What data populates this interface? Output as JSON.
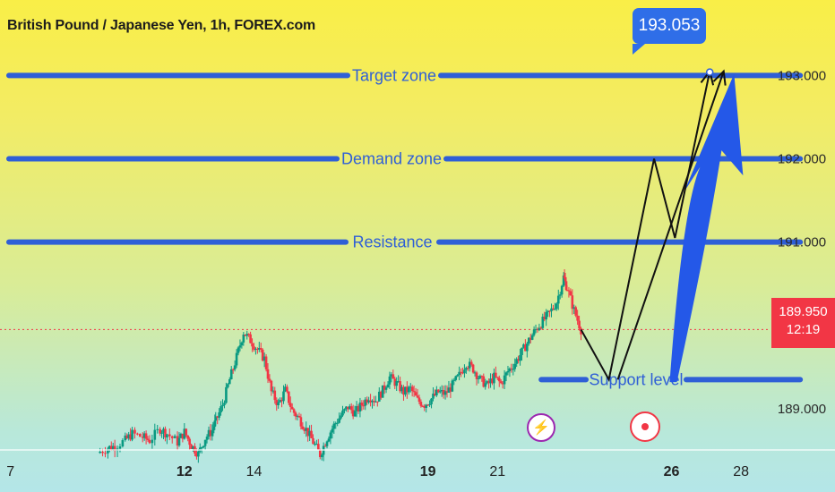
{
  "header": {
    "title": "British Pound / Japanese Yen, 1h, FOREX.com"
  },
  "colors": {
    "zone_line": "#2f5fd6",
    "up_candle": "#089981",
    "down_candle": "#f23645",
    "arrow_blue": "#2458e8",
    "path_black": "#111111"
  },
  "chart_data": {
    "type": "candlestick",
    "symbol": "British Pound / Japanese Yen",
    "interval": "1h",
    "source": "FOREX.com",
    "ylim": [
      188.5,
      193.9
    ],
    "y_ticks": [
      "193.000",
      "192.000",
      "191.000",
      "189.000"
    ],
    "x_ticks": [
      "7",
      "12",
      "14",
      "19",
      "21",
      "26",
      "28"
    ],
    "x_ticks_bold": [
      "12",
      "19",
      "26"
    ],
    "x_tick_days": [
      7,
      12,
      14,
      19,
      21,
      26,
      28
    ],
    "xlim": [
      6.7,
      30.7
    ],
    "current_price": "189.950",
    "countdown": "12:19",
    "zones": [
      {
        "label": "Target zone",
        "price": 193.0,
        "x_start": 6.7,
        "x_end": 29.7
      },
      {
        "label": "Demand zone",
        "price": 192.0,
        "x_start": 6.7,
        "x_end": 29.7
      },
      {
        "label": "Resistance",
        "price": 191.0,
        "x_start": 6.7,
        "x_end": 29.7
      },
      {
        "label": "Support level",
        "price": 189.35,
        "x_start": 22.0,
        "x_end": 29.7
      }
    ],
    "callout": "193.053",
    "projection_path": [
      [
        23.4,
        189.95
      ],
      [
        24.2,
        189.35
      ],
      [
        25.5,
        192.0
      ],
      [
        26.1,
        191.05
      ],
      [
        27.1,
        193.05
      ]
    ],
    "close_path": [
      [
        9.5,
        188.47
      ],
      [
        9.8,
        188.53
      ],
      [
        10.0,
        188.55
      ],
      [
        10.3,
        188.62
      ],
      [
        10.5,
        188.7
      ],
      [
        10.8,
        188.66
      ],
      [
        11.0,
        188.62
      ],
      [
        11.3,
        188.76
      ],
      [
        11.5,
        188.7
      ],
      [
        11.8,
        188.6
      ],
      [
        12.0,
        188.72
      ],
      [
        12.2,
        188.56
      ],
      [
        12.4,
        188.46
      ],
      [
        12.6,
        188.65
      ],
      [
        12.8,
        188.74
      ],
      [
        12.9,
        188.85
      ],
      [
        13.1,
        189.05
      ],
      [
        13.3,
        189.35
      ],
      [
        13.5,
        189.62
      ],
      [
        13.7,
        189.92
      ],
      [
        13.9,
        189.82
      ],
      [
        14.1,
        189.71
      ],
      [
        14.3,
        189.6
      ],
      [
        14.5,
        189.2
      ],
      [
        14.7,
        189.05
      ],
      [
        14.9,
        189.22
      ],
      [
        15.1,
        188.98
      ],
      [
        15.3,
        188.88
      ],
      [
        15.5,
        188.75
      ],
      [
        15.7,
        188.6
      ],
      [
        15.9,
        188.45
      ],
      [
        16.1,
        188.65
      ],
      [
        16.3,
        188.8
      ],
      [
        16.5,
        188.92
      ],
      [
        16.7,
        189.02
      ],
      [
        16.9,
        188.95
      ],
      [
        17.1,
        189.05
      ],
      [
        17.3,
        189.15
      ],
      [
        17.5,
        189.1
      ],
      [
        17.7,
        189.22
      ],
      [
        17.9,
        189.38
      ],
      [
        18.1,
        189.3
      ],
      [
        18.3,
        189.2
      ],
      [
        18.5,
        189.24
      ],
      [
        18.7,
        189.1
      ],
      [
        18.9,
        189.05
      ],
      [
        19.1,
        189.12
      ],
      [
        19.3,
        189.2
      ],
      [
        19.5,
        189.18
      ],
      [
        19.7,
        189.28
      ],
      [
        19.9,
        189.4
      ],
      [
        20.1,
        189.55
      ],
      [
        20.3,
        189.48
      ],
      [
        20.5,
        189.35
      ],
      [
        20.7,
        189.28
      ],
      [
        20.9,
        189.38
      ],
      [
        21.1,
        189.3
      ],
      [
        21.3,
        189.45
      ],
      [
        21.5,
        189.55
      ],
      [
        21.7,
        189.68
      ],
      [
        21.9,
        189.82
      ],
      [
        22.1,
        189.95
      ],
      [
        22.3,
        190.05
      ],
      [
        22.5,
        190.15
      ],
      [
        22.7,
        190.28
      ],
      [
        22.9,
        190.58
      ],
      [
        23.0,
        190.45
      ],
      [
        23.2,
        190.18
      ],
      [
        23.4,
        189.95
      ]
    ]
  }
}
